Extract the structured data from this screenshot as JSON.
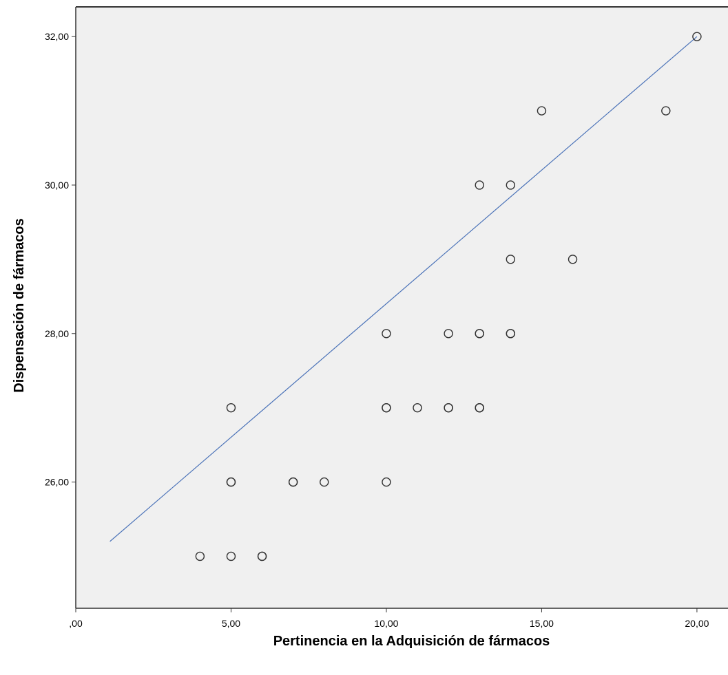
{
  "chart_data": {
    "type": "scatter",
    "title": "",
    "xlabel": "Pertinencia en la Adquisición de fármacos",
    "ylabel": "Dispensación de fármacos",
    "xlim": [
      0,
      21
    ],
    "ylim": [
      24.3,
      32.4
    ],
    "x_ticks": [
      0,
      5,
      10,
      15,
      20
    ],
    "x_tick_labels": [
      ",00",
      "5,00",
      "10,00",
      "15,00",
      "20,00"
    ],
    "y_ticks": [
      26,
      28,
      30,
      32
    ],
    "y_tick_labels": [
      "26,00",
      "28,00",
      "30,00",
      "32,00"
    ],
    "grid": false,
    "legend": "none",
    "colors": {
      "plot_background": "#f0f0f0",
      "marker_stroke": "#333333",
      "fit_line": "#4a72b8",
      "axis": "#333333"
    },
    "points": [
      {
        "x": 20,
        "y": 32
      },
      {
        "x": 15,
        "y": 31
      },
      {
        "x": 19,
        "y": 31
      },
      {
        "x": 13,
        "y": 30
      },
      {
        "x": 14,
        "y": 30
      },
      {
        "x": 14,
        "y": 29
      },
      {
        "x": 16,
        "y": 29
      },
      {
        "x": 10,
        "y": 28
      },
      {
        "x": 12,
        "y": 28
      },
      {
        "x": 13,
        "y": 28
      },
      {
        "x": 13,
        "y": 28
      },
      {
        "x": 14,
        "y": 28
      },
      {
        "x": 14,
        "y": 28
      },
      {
        "x": 5,
        "y": 27
      },
      {
        "x": 10,
        "y": 27
      },
      {
        "x": 10,
        "y": 27
      },
      {
        "x": 11,
        "y": 27
      },
      {
        "x": 12,
        "y": 27
      },
      {
        "x": 12,
        "y": 27
      },
      {
        "x": 13,
        "y": 27
      },
      {
        "x": 13,
        "y": 27
      },
      {
        "x": 13,
        "y": 27
      },
      {
        "x": 5,
        "y": 26
      },
      {
        "x": 5,
        "y": 26
      },
      {
        "x": 7,
        "y": 26
      },
      {
        "x": 7,
        "y": 26
      },
      {
        "x": 8,
        "y": 26
      },
      {
        "x": 10,
        "y": 26
      },
      {
        "x": 4,
        "y": 25
      },
      {
        "x": 5,
        "y": 25
      },
      {
        "x": 6,
        "y": 25
      },
      {
        "x": 6,
        "y": 25
      }
    ],
    "fit_line": {
      "x": [
        1.1,
        20
      ],
      "y": [
        25.2,
        32
      ]
    }
  }
}
